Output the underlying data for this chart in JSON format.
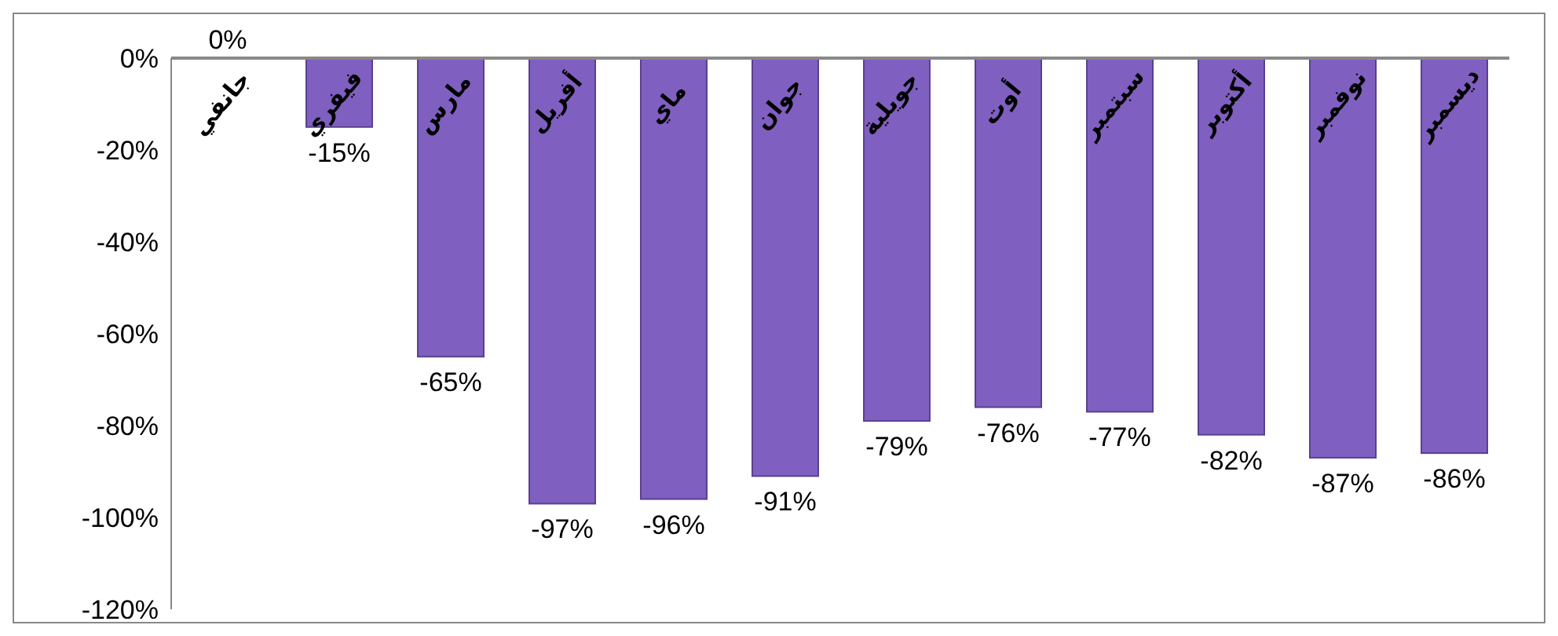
{
  "chart_data": {
    "type": "bar",
    "categories": [
      "جانفي",
      "فيفري",
      "مارس",
      "أفريل",
      "ماي",
      "جوان",
      "جويلية",
      "أوت",
      "سبتمبر",
      "أكتوبر",
      "نوفمبر",
      "ديسمبر"
    ],
    "values": [
      0,
      -15,
      -65,
      -97,
      -96,
      -91,
      -79,
      -76,
      -77,
      -82,
      -87,
      -86
    ],
    "value_labels": [
      "0%",
      "-15%",
      "-65%",
      "-97%",
      "-96%",
      "-91%",
      "-79%",
      "-76%",
      "-77%",
      "-82%",
      "-87%",
      "-86%"
    ],
    "color": "#7f5fbf",
    "ylim": [
      -120,
      0
    ],
    "yticks": [
      {
        "value": 0,
        "label": "0%"
      },
      {
        "value": -20,
        "label": "-20%"
      },
      {
        "value": -40,
        "label": "-40%"
      },
      {
        "value": -60,
        "label": "-60%"
      },
      {
        "value": -80,
        "label": "-80%"
      },
      {
        "value": -100,
        "label": "-100%"
      },
      {
        "value": -120,
        "label": "-120%"
      }
    ],
    "grid": false,
    "legend": false
  }
}
